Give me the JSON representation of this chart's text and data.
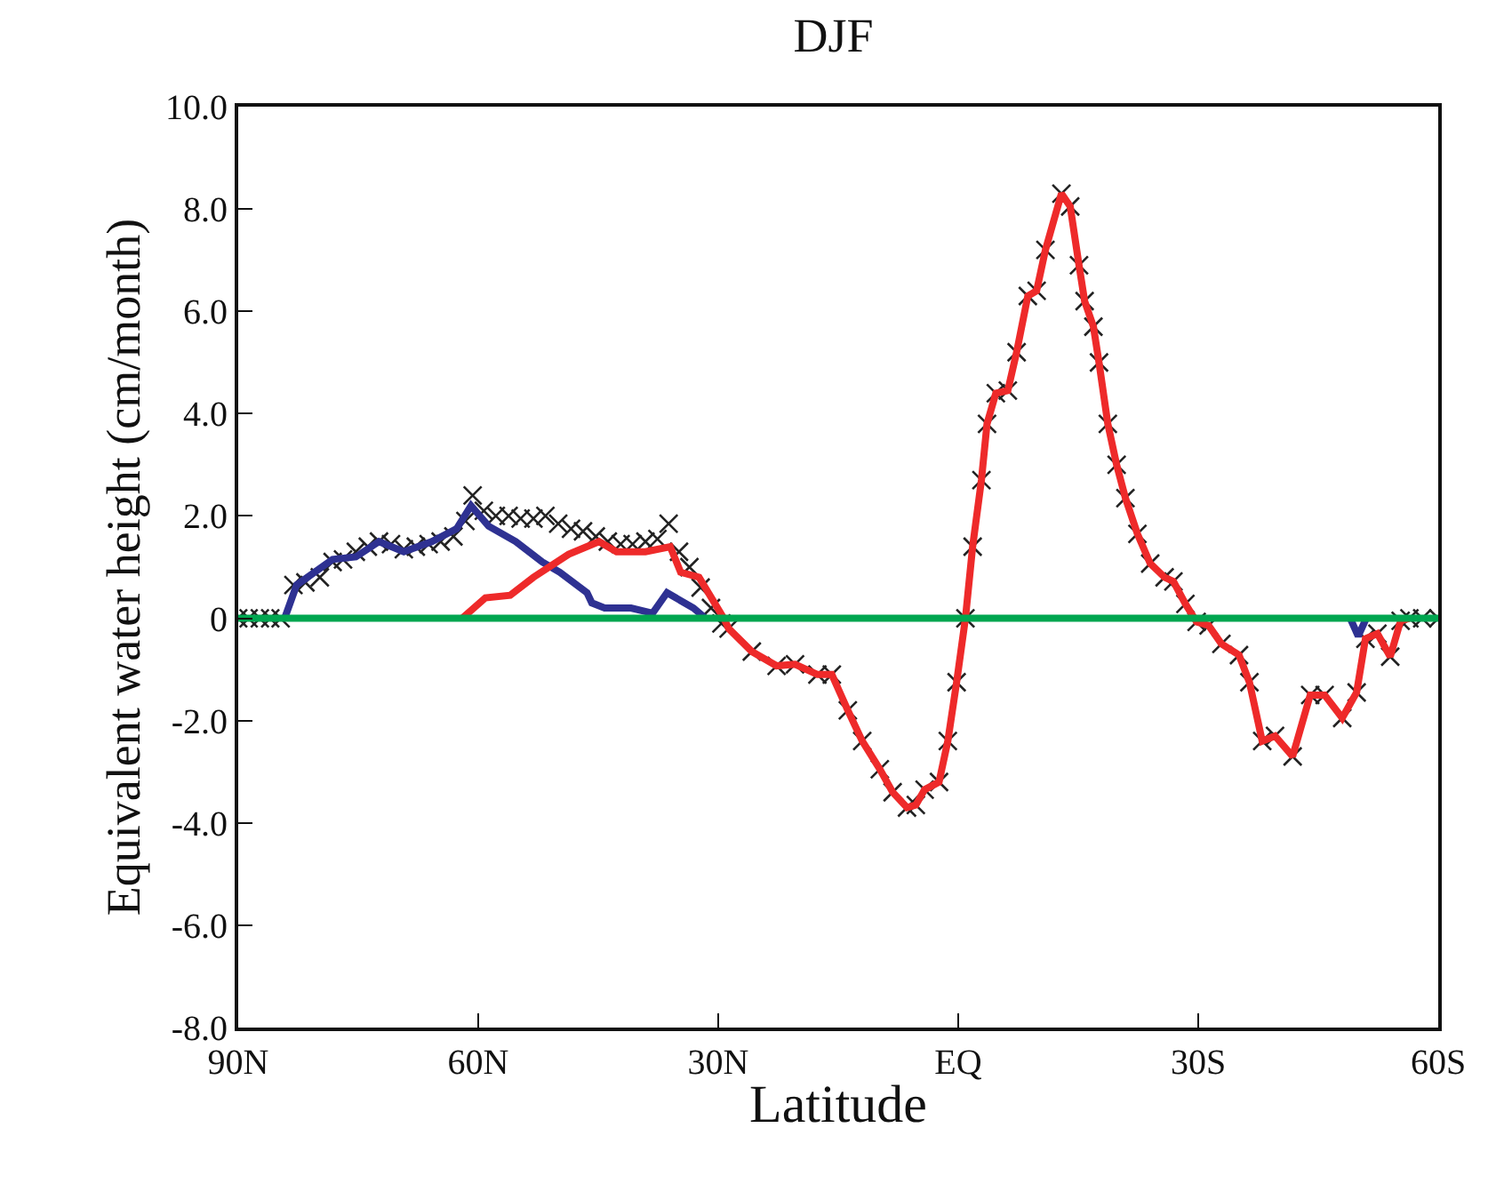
{
  "chart_data": {
    "type": "line",
    "title": "DJF",
    "xlabel": "Latitude",
    "ylabel": "Equivalent water height (cm/month)",
    "xlim": [
      90,
      -60
    ],
    "xticks": [
      {
        "value": 90,
        "label": "90N"
      },
      {
        "value": 60,
        "label": "60N"
      },
      {
        "value": 30,
        "label": "30N"
      },
      {
        "value": 0,
        "label": "EQ"
      },
      {
        "value": -30,
        "label": "30S"
      },
      {
        "value": -60,
        "label": "60S"
      }
    ],
    "ylim": [
      -8,
      10
    ],
    "yticks": [
      {
        "value": -8,
        "label": "-8.0"
      },
      {
        "value": -6,
        "label": "-6.0"
      },
      {
        "value": -4,
        "label": "-4.0"
      },
      {
        "value": -2,
        "label": "-2.0"
      },
      0,
      {
        "value": 2,
        "label": "2.0"
      },
      {
        "value": 4,
        "label": "4.0"
      },
      {
        "value": 6,
        "label": "6.0"
      },
      {
        "value": 8,
        "label": "8.0"
      },
      {
        "value": 10,
        "label": "10.0"
      }
    ],
    "line_style": "solid",
    "series": [
      {
        "type": "scatter",
        "marker": "cross",
        "color": "#222222",
        "x": [
          90,
          88.7,
          87.3,
          86,
          84.7,
          83.1,
          81.6,
          79.8,
          78.2,
          76.9,
          75.3,
          73.8,
          72.4,
          70.9,
          69.3,
          67.8,
          66.2,
          64.7,
          63.1,
          61.6,
          60.7,
          59.3,
          57.8,
          56.2,
          54.7,
          53.1,
          51.6,
          50,
          48.4,
          46.9,
          45.3,
          43.8,
          42.2,
          40.7,
          39.1,
          37.6,
          36.2,
          34.9,
          33.6,
          32.2,
          30.9,
          29.6,
          28.7,
          25.8,
          22.7,
          20.4,
          17.6,
          15.8,
          13.8,
          12,
          9.8,
          8.2,
          6.4,
          5.3,
          4.2,
          2.4,
          1.3,
          0.2,
          -0.9,
          -1.8,
          -2.9,
          -3.6,
          -4.7,
          -6.2,
          -7.3,
          -8.7,
          -9.8,
          -10.9,
          -12.9,
          -14,
          -15.1,
          -15.8,
          -16.9,
          -17.6,
          -18.7,
          -19.8,
          -20.9,
          -22.4,
          -24,
          -25.8,
          -26.9,
          -28.4,
          -29.8,
          -31.3,
          -32.9,
          -35.1,
          -36.4,
          -38,
          -39.6,
          -41.8,
          -44,
          -45.8,
          -48,
          -49.8,
          -50.9,
          -52.4,
          -54,
          -55.3,
          -56.4,
          -58,
          -60
        ],
        "values": [
          0,
          0,
          0,
          0,
          0,
          0.65,
          0.7,
          0.8,
          1.1,
          1.15,
          1.3,
          1.4,
          1.5,
          1.45,
          1.35,
          1.4,
          1.45,
          1.5,
          1.6,
          1.9,
          2.4,
          2.1,
          2.0,
          2.0,
          1.95,
          1.95,
          2.0,
          1.85,
          1.75,
          1.7,
          1.6,
          1.5,
          1.45,
          1.45,
          1.5,
          1.55,
          1.85,
          1.3,
          1.0,
          0.6,
          0.2,
          -0.1,
          -0.2,
          -0.65,
          -0.93,
          -0.9,
          -1.1,
          -1.1,
          -1.8,
          -2.4,
          -2.95,
          -3.4,
          -3.7,
          -3.65,
          -3.35,
          -3.2,
          -2.4,
          -1.25,
          0,
          1.4,
          2.7,
          3.8,
          4.4,
          4.45,
          5.2,
          6.3,
          6.4,
          7.2,
          8.3,
          8.05,
          6.9,
          6.2,
          5.7,
          5.0,
          3.8,
          3.0,
          2.35,
          1.65,
          1.07,
          0.8,
          0.72,
          0.28,
          -0.07,
          -0.14,
          -0.5,
          -0.72,
          -1.25,
          -2.4,
          -2.3,
          -2.7,
          -1.5,
          -1.5,
          -1.95,
          -1.45,
          -0.4,
          -0.3,
          -0.75,
          -0.05,
          0,
          0,
          0
        ]
      },
      {
        "marker": "none",
        "color": "#2e3192",
        "x": [
          84.2,
          82.7,
          78.2,
          75.3,
          72.4,
          69.3,
          65.8,
          62.7,
          60.9,
          58.7,
          55.3,
          52,
          49.8,
          46.4,
          45.8,
          44.2,
          40.9,
          38.2,
          36.4,
          33.1,
          31.6,
          0,
          -49,
          -50,
          -51
        ],
        "values": [
          0,
          0.65,
          1.15,
          1.2,
          1.5,
          1.3,
          1.5,
          1.75,
          2.2,
          1.8,
          1.5,
          1.1,
          0.9,
          0.5,
          0.3,
          0.2,
          0.2,
          0.1,
          0.5,
          0.2,
          0,
          null,
          0,
          -0.35,
          0
        ]
      },
      {
        "marker": "none",
        "color": "#ee2a2a",
        "x": [
          62,
          59.1,
          56,
          53.1,
          48.7,
          44.9,
          42.7,
          39.1,
          36,
          34.7,
          32.4,
          29.3,
          28.7,
          25.8,
          22.7,
          20.4,
          17.6,
          15.8,
          13.8,
          12,
          9.8,
          8.2,
          6.4,
          5.3,
          4.2,
          2.4,
          1.3,
          0.2,
          -0.9,
          -1.8,
          -2.9,
          -3.6,
          -4.7,
          -6.2,
          -7.3,
          -8.7,
          -9.8,
          -10.9,
          -12.9,
          -14,
          -15.1,
          -15.8,
          -16.9,
          -17.6,
          -18.7,
          -19.8,
          -20.9,
          -22.4,
          -24,
          -25.8,
          -26.9,
          -28.4,
          -29.8,
          -31.3,
          -32.9,
          -35.1,
          -36.4,
          -38,
          -39.6,
          -41.8,
          -44,
          -45.8,
          -48,
          -49.8,
          -50.9,
          -52.4,
          -54,
          -55.3,
          -56.4
        ],
        "values": [
          0,
          0.4,
          0.45,
          0.8,
          1.25,
          1.5,
          1.3,
          1.3,
          1.4,
          0.9,
          0.8,
          0,
          -0.2,
          -0.65,
          -0.93,
          -0.9,
          -1.1,
          -1.1,
          -1.8,
          -2.4,
          -2.95,
          -3.4,
          -3.7,
          -3.65,
          -3.35,
          -3.2,
          -2.4,
          -1.25,
          0,
          1.4,
          2.7,
          3.8,
          4.4,
          4.45,
          5.2,
          6.3,
          6.4,
          7.2,
          8.3,
          8.05,
          6.9,
          6.2,
          5.7,
          5.0,
          3.8,
          3.0,
          2.35,
          1.65,
          1.07,
          0.8,
          0.72,
          0.28,
          -0.07,
          -0.14,
          -0.5,
          -0.72,
          -1.25,
          -2.4,
          -2.3,
          -2.7,
          -1.5,
          -1.5,
          -1.95,
          -1.45,
          -0.4,
          -0.3,
          -0.75,
          -0.05,
          0
        ]
      },
      {
        "marker": "none",
        "color": "#00a650",
        "x": [
          90,
          -60
        ],
        "values": [
          0,
          0
        ]
      }
    ]
  }
}
